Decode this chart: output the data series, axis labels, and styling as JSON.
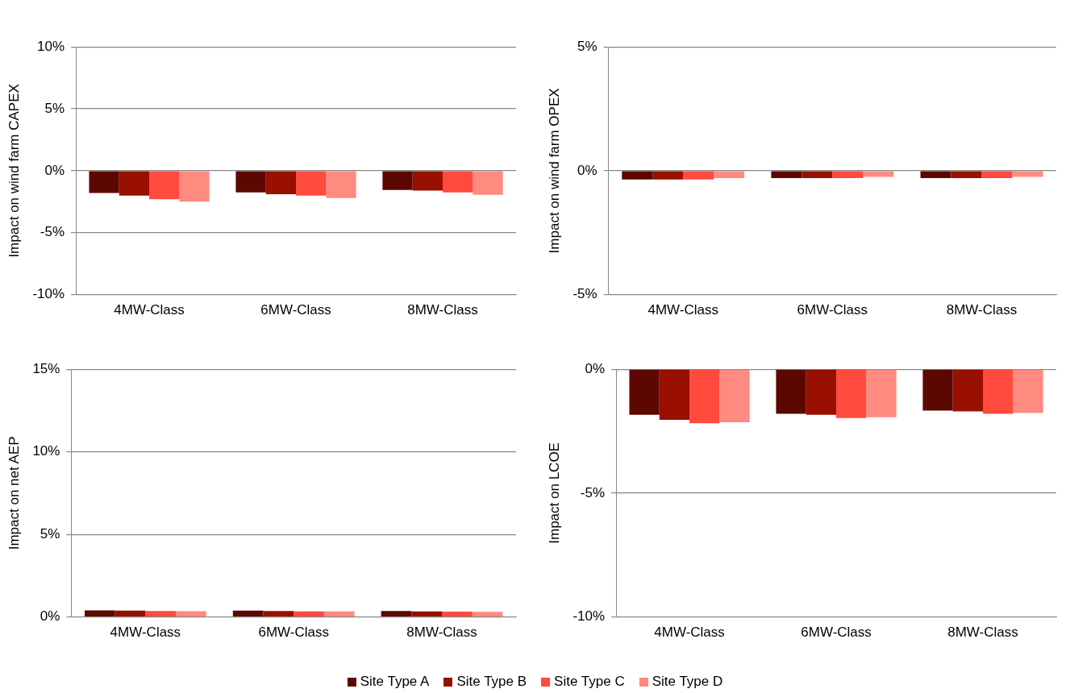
{
  "chart_data": [
    {
      "type": "bar",
      "ylabel": "Impact on wind farm CAPEX",
      "categories": [
        "4MW-Class",
        "6MW-Class",
        "8MW-Class"
      ],
      "ylim": [
        -10,
        10
      ],
      "yticks": [
        {
          "value": -10,
          "label": "-10%"
        },
        {
          "value": -5,
          "label": "-5%"
        },
        {
          "value": 0,
          "label": "0%"
        },
        {
          "value": 5,
          "label": "5%"
        },
        {
          "value": 10,
          "label": "10%"
        }
      ],
      "grid": "y",
      "legend": "bottom",
      "series": [
        {
          "name": "Site Type A",
          "color": "#5c0800",
          "values": [
            -1.8,
            -1.75,
            -1.55
          ]
        },
        {
          "name": "Site Type B",
          "color": "#990f00",
          "values": [
            -2.0,
            -1.9,
            -1.6
          ]
        },
        {
          "name": "Site Type C",
          "color": "#ff4a3d",
          "values": [
            -2.3,
            -2.0,
            -1.75
          ]
        },
        {
          "name": "Site Type D",
          "color": "#ff8a80",
          "values": [
            -2.5,
            -2.2,
            -1.95
          ]
        }
      ]
    },
    {
      "type": "bar",
      "ylabel": "Impact on wind farm OPEX",
      "categories": [
        "4MW-Class",
        "6MW-Class",
        "8MW-Class"
      ],
      "ylim": [
        -5,
        5
      ],
      "yticks": [
        {
          "value": -5,
          "label": "-5%"
        },
        {
          "value": 0,
          "label": "0%"
        },
        {
          "value": 5,
          "label": "5%"
        }
      ],
      "grid": "y",
      "series": [
        {
          "color": "#5c0800",
          "values": [
            -0.35,
            -0.3,
            -0.3
          ]
        },
        {
          "color": "#990f00",
          "values": [
            -0.35,
            -0.3,
            -0.3
          ]
        },
        {
          "color": "#ff4a3d",
          "values": [
            -0.35,
            -0.3,
            -0.3
          ]
        },
        {
          "color": "#ff8a80",
          "values": [
            -0.3,
            -0.25,
            -0.25
          ]
        }
      ]
    },
    {
      "type": "bar",
      "ylabel": "Impact on net AEP",
      "categories": [
        "4MW-Class",
        "6MW-Class",
        "8MW-Class"
      ],
      "ylim": [
        0,
        15
      ],
      "yticks": [
        {
          "value": 0,
          "label": "0%"
        },
        {
          "value": 5,
          "label": "5%"
        },
        {
          "value": 10,
          "label": "10%"
        },
        {
          "value": 15,
          "label": "15%"
        }
      ],
      "grid": "y",
      "series": [
        {
          "color": "#5c0800",
          "values": [
            0.4,
            0.38,
            0.36
          ]
        },
        {
          "color": "#990f00",
          "values": [
            0.38,
            0.36,
            0.34
          ]
        },
        {
          "color": "#ff4a3d",
          "values": [
            0.36,
            0.34,
            0.32
          ]
        },
        {
          "color": "#ff8a80",
          "values": [
            0.35,
            0.33,
            0.31
          ]
        }
      ]
    },
    {
      "type": "bar",
      "ylabel": "Impact on LCOE",
      "categories": [
        "4MW-Class",
        "6MW-Class",
        "8MW-Class"
      ],
      "ylim": [
        -10,
        0
      ],
      "yticks": [
        {
          "value": -10,
          "label": "-10%"
        },
        {
          "value": -5,
          "label": "-5%"
        },
        {
          "value": 0,
          "label": "0%"
        }
      ],
      "grid": "y",
      "series": [
        {
          "color": "#5c0800",
          "values": [
            -1.84,
            -1.8,
            -1.67
          ]
        },
        {
          "color": "#990f00",
          "values": [
            -2.04,
            -1.84,
            -1.7
          ]
        },
        {
          "color": "#ff4a3d",
          "values": [
            -2.18,
            -1.97,
            -1.8
          ]
        },
        {
          "color": "#ff8a80",
          "values": [
            -2.14,
            -1.94,
            -1.77
          ]
        }
      ]
    }
  ]
}
